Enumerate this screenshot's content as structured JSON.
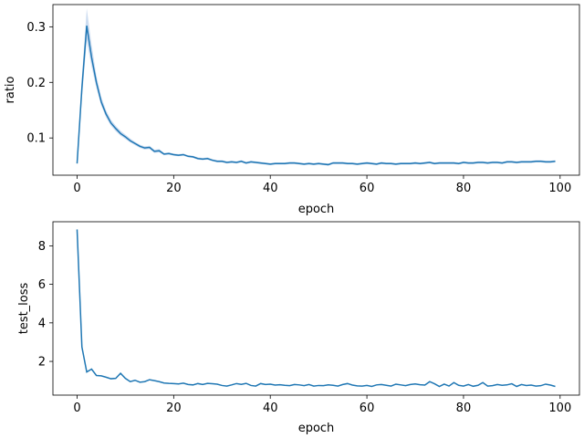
{
  "chart_data": [
    {
      "type": "line",
      "title": "",
      "xlabel": "epoch",
      "ylabel": "ratio",
      "xlim": [
        -5,
        104
      ],
      "ylim": [
        0.033,
        0.34
      ],
      "xticks": [
        0,
        20,
        40,
        60,
        80,
        100
      ],
      "yticks": [
        0.1,
        0.2,
        0.3
      ],
      "grid": false,
      "color": "#1f77b4",
      "band_color": "#aec7e8",
      "series": [
        {
          "x": [
            0,
            1,
            2,
            3,
            4,
            5,
            6,
            7,
            8,
            9,
            10,
            11,
            12,
            13,
            14,
            15,
            16,
            17,
            18,
            19,
            20,
            21,
            22,
            23,
            24,
            25,
            26,
            27,
            28,
            29,
            30,
            31,
            32,
            33,
            34,
            35,
            36,
            37,
            38,
            39,
            40,
            41,
            42,
            43,
            44,
            45,
            46,
            47,
            48,
            49,
            50,
            51,
            52,
            53,
            54,
            55,
            56,
            57,
            58,
            59,
            60,
            61,
            62,
            63,
            64,
            65,
            66,
            67,
            68,
            69,
            70,
            71,
            72,
            73,
            74,
            75,
            76,
            77,
            78,
            79,
            80,
            81,
            82,
            83,
            84,
            85,
            86,
            87,
            88,
            89,
            90,
            91,
            92,
            93,
            94,
            95,
            96,
            97,
            98,
            99
          ],
          "y": [
            0.054,
            0.19,
            0.302,
            0.245,
            0.2,
            0.165,
            0.143,
            0.127,
            0.117,
            0.108,
            0.102,
            0.095,
            0.09,
            0.085,
            0.082,
            0.083,
            0.076,
            0.077,
            0.071,
            0.072,
            0.07,
            0.069,
            0.07,
            0.067,
            0.066,
            0.063,
            0.062,
            0.063,
            0.06,
            0.058,
            0.058,
            0.056,
            0.057,
            0.056,
            0.058,
            0.055,
            0.057,
            0.056,
            0.055,
            0.054,
            0.053,
            0.054,
            0.054,
            0.054,
            0.055,
            0.055,
            0.054,
            0.053,
            0.054,
            0.053,
            0.054,
            0.053,
            0.052,
            0.055,
            0.055,
            0.055,
            0.054,
            0.054,
            0.053,
            0.054,
            0.055,
            0.054,
            0.053,
            0.055,
            0.054,
            0.054,
            0.053,
            0.054,
            0.054,
            0.054,
            0.055,
            0.054,
            0.055,
            0.056,
            0.054,
            0.055,
            0.055,
            0.055,
            0.055,
            0.054,
            0.056,
            0.055,
            0.055,
            0.056,
            0.056,
            0.055,
            0.056,
            0.056,
            0.055,
            0.057,
            0.057,
            0.056,
            0.057,
            0.057,
            0.057,
            0.058,
            0.058,
            0.057,
            0.057,
            0.058
          ],
          "y_lower": [
            0.052,
            0.17,
            0.275,
            0.228,
            0.19,
            0.158,
            0.137,
            0.122,
            0.112,
            0.104,
            0.098,
            0.092,
            0.087,
            0.082,
            0.079,
            0.08,
            0.073,
            0.074,
            0.069,
            0.07,
            0.068,
            0.067,
            0.068,
            0.065,
            0.064,
            0.061,
            0.06,
            0.061,
            0.058,
            0.056,
            0.056,
            0.054,
            0.055,
            0.054,
            0.056,
            0.053,
            0.055,
            0.054,
            0.053,
            0.052,
            0.051,
            0.052,
            0.052,
            0.052,
            0.053,
            0.053,
            0.052,
            0.051,
            0.052,
            0.051,
            0.052,
            0.051,
            0.05,
            0.053,
            0.053,
            0.053,
            0.052,
            0.052,
            0.051,
            0.052,
            0.053,
            0.052,
            0.051,
            0.053,
            0.052,
            0.052,
            0.051,
            0.052,
            0.052,
            0.052,
            0.053,
            0.052,
            0.053,
            0.054,
            0.052,
            0.053,
            0.053,
            0.053,
            0.053,
            0.052,
            0.054,
            0.053,
            0.053,
            0.054,
            0.054,
            0.053,
            0.054,
            0.054,
            0.053,
            0.055,
            0.055,
            0.054,
            0.055,
            0.055,
            0.055,
            0.056,
            0.056,
            0.055,
            0.055,
            0.056
          ],
          "y_upper": [
            0.056,
            0.21,
            0.333,
            0.268,
            0.212,
            0.174,
            0.15,
            0.133,
            0.122,
            0.113,
            0.106,
            0.099,
            0.093,
            0.088,
            0.085,
            0.086,
            0.079,
            0.08,
            0.073,
            0.074,
            0.072,
            0.071,
            0.072,
            0.069,
            0.068,
            0.065,
            0.064,
            0.065,
            0.062,
            0.06,
            0.06,
            0.058,
            0.059,
            0.058,
            0.06,
            0.057,
            0.059,
            0.058,
            0.057,
            0.056,
            0.055,
            0.056,
            0.056,
            0.056,
            0.057,
            0.057,
            0.056,
            0.055,
            0.056,
            0.055,
            0.056,
            0.055,
            0.054,
            0.057,
            0.057,
            0.057,
            0.056,
            0.056,
            0.055,
            0.056,
            0.057,
            0.056,
            0.055,
            0.057,
            0.056,
            0.056,
            0.055,
            0.056,
            0.056,
            0.056,
            0.057,
            0.056,
            0.057,
            0.058,
            0.056,
            0.057,
            0.057,
            0.057,
            0.057,
            0.056,
            0.058,
            0.057,
            0.057,
            0.058,
            0.058,
            0.057,
            0.058,
            0.058,
            0.057,
            0.059,
            0.059,
            0.058,
            0.059,
            0.059,
            0.059,
            0.06,
            0.06,
            0.059,
            0.059,
            0.06
          ]
        }
      ]
    },
    {
      "type": "line",
      "title": "",
      "xlabel": "epoch",
      "ylabel": "test_loss",
      "xlim": [
        -5,
        104
      ],
      "ylim": [
        0.25,
        9.25
      ],
      "xticks": [
        0,
        20,
        40,
        60,
        80,
        100
      ],
      "yticks": [
        2,
        4,
        6,
        8
      ],
      "grid": false,
      "color": "#1f77b4",
      "series": [
        {
          "x": [
            0,
            1,
            2,
            3,
            4,
            5,
            6,
            7,
            8,
            9,
            10,
            11,
            12,
            13,
            14,
            15,
            16,
            17,
            18,
            19,
            20,
            21,
            22,
            23,
            24,
            25,
            26,
            27,
            28,
            29,
            30,
            31,
            32,
            33,
            34,
            35,
            36,
            37,
            38,
            39,
            40,
            41,
            42,
            43,
            44,
            45,
            46,
            47,
            48,
            49,
            50,
            51,
            52,
            53,
            54,
            55,
            56,
            57,
            58,
            59,
            60,
            61,
            62,
            63,
            64,
            65,
            66,
            67,
            68,
            69,
            70,
            71,
            72,
            73,
            74,
            75,
            76,
            77,
            78,
            79,
            80,
            81,
            82,
            83,
            84,
            85,
            86,
            87,
            88,
            89,
            90,
            91,
            92,
            93,
            94,
            95,
            96,
            97,
            98,
            99
          ],
          "y": [
            8.85,
            2.75,
            1.45,
            1.6,
            1.27,
            1.25,
            1.18,
            1.1,
            1.12,
            1.38,
            1.12,
            0.95,
            1.02,
            0.92,
            0.95,
            1.05,
            1.0,
            0.95,
            0.88,
            0.86,
            0.85,
            0.83,
            0.87,
            0.8,
            0.78,
            0.85,
            0.8,
            0.86,
            0.84,
            0.82,
            0.75,
            0.72,
            0.78,
            0.85,
            0.81,
            0.86,
            0.75,
            0.72,
            0.85,
            0.8,
            0.82,
            0.77,
            0.79,
            0.76,
            0.74,
            0.8,
            0.78,
            0.74,
            0.8,
            0.72,
            0.75,
            0.74,
            0.78,
            0.76,
            0.72,
            0.8,
            0.85,
            0.77,
            0.73,
            0.72,
            0.75,
            0.7,
            0.78,
            0.8,
            0.76,
            0.72,
            0.82,
            0.78,
            0.74,
            0.8,
            0.83,
            0.79,
            0.77,
            0.95,
            0.84,
            0.7,
            0.82,
            0.72,
            0.9,
            0.76,
            0.72,
            0.8,
            0.71,
            0.76,
            0.9,
            0.72,
            0.74,
            0.8,
            0.76,
            0.78,
            0.84,
            0.7,
            0.8,
            0.75,
            0.77,
            0.72,
            0.74,
            0.82,
            0.77,
            0.7
          ]
        }
      ]
    }
  ]
}
